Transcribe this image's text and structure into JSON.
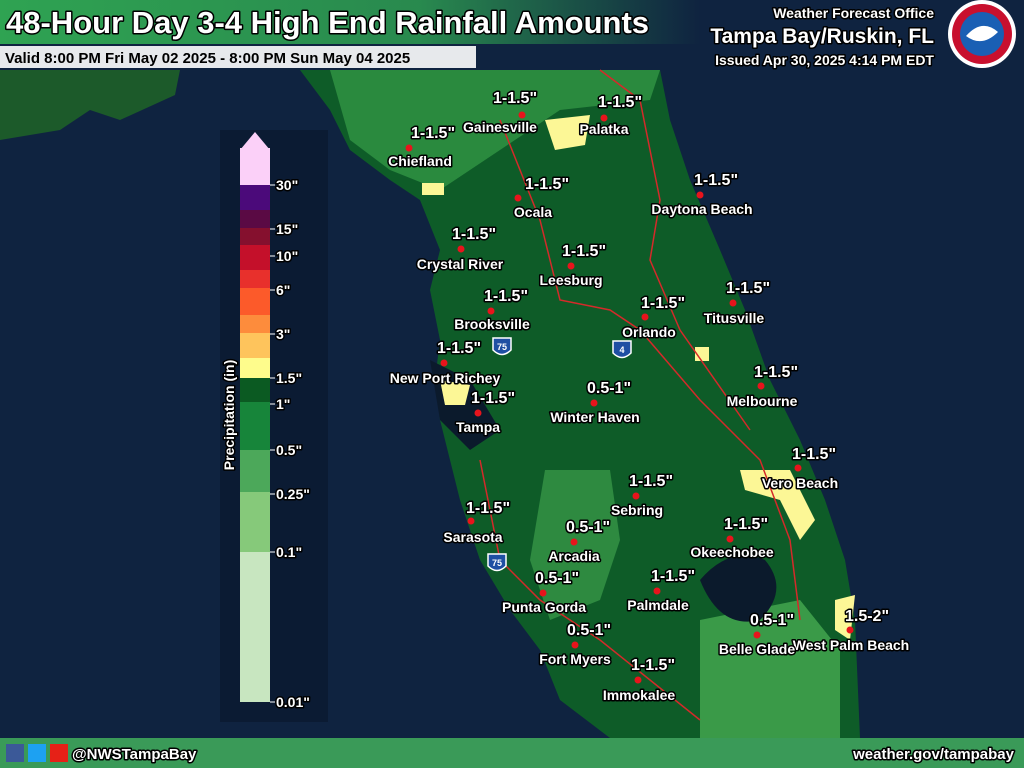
{
  "header": {
    "title": "48-Hour Day 3-4 High End Rainfall Amounts",
    "valid": "Valid 8:00 PM Fri May 02 2025 - 8:00 PM Sun May 04 2025",
    "office": "Weather Forecast Office",
    "location": "Tampa Bay/Ruskin, FL",
    "issued": "Issued Apr 30, 2025 4:14 PM EDT"
  },
  "legend": {
    "title": "Precipitation (in)",
    "labels": [
      "30\"",
      "15\"",
      "10\"",
      "6\"",
      "3\"",
      "1.5\"",
      "1\"",
      "0.5\"",
      "0.25\"",
      "0.1\"",
      "0.01\""
    ]
  },
  "cities": [
    {
      "name": "Gainesville",
      "amount": "1-1.5\""
    },
    {
      "name": "Palatka",
      "amount": "1-1.5\""
    },
    {
      "name": "Chiefland",
      "amount": "1-1.5\""
    },
    {
      "name": "Ocala",
      "amount": "1-1.5\""
    },
    {
      "name": "Daytona Beach",
      "amount": "1-1.5\""
    },
    {
      "name": "Crystal River",
      "amount": "1-1.5\""
    },
    {
      "name": "Leesburg",
      "amount": "1-1.5\""
    },
    {
      "name": "Brooksville",
      "amount": "1-1.5\""
    },
    {
      "name": "Orlando",
      "amount": "1-1.5\""
    },
    {
      "name": "Titusville",
      "amount": "1-1.5\""
    },
    {
      "name": "New Port Richey",
      "amount": "1-1.5\""
    },
    {
      "name": "Melbourne",
      "amount": "1-1.5\""
    },
    {
      "name": "Tampa",
      "amount": "1-1.5\""
    },
    {
      "name": "Winter Haven",
      "amount": "0.5-1\""
    },
    {
      "name": "Vero Beach",
      "amount": "1-1.5\""
    },
    {
      "name": "Sebring",
      "amount": "1-1.5\""
    },
    {
      "name": "Sarasota",
      "amount": "1-1.5\""
    },
    {
      "name": "Arcadia",
      "amount": "0.5-1\""
    },
    {
      "name": "Okeechobee",
      "amount": "1-1.5\""
    },
    {
      "name": "Punta Gorda",
      "amount": "0.5-1\""
    },
    {
      "name": "Palmdale",
      "amount": "1-1.5\""
    },
    {
      "name": "West Palm Beach",
      "amount": "1.5-2\""
    },
    {
      "name": "Belle Glade",
      "amount": "0.5-1\""
    },
    {
      "name": "Fort Myers",
      "amount": "0.5-1\""
    },
    {
      "name": "Immokalee",
      "amount": "1-1.5\""
    }
  ],
  "highways": [
    "75",
    "4",
    "75"
  ],
  "footer": {
    "handle": "@NWSTampaBay",
    "url": "weather.gov/tampabay"
  }
}
